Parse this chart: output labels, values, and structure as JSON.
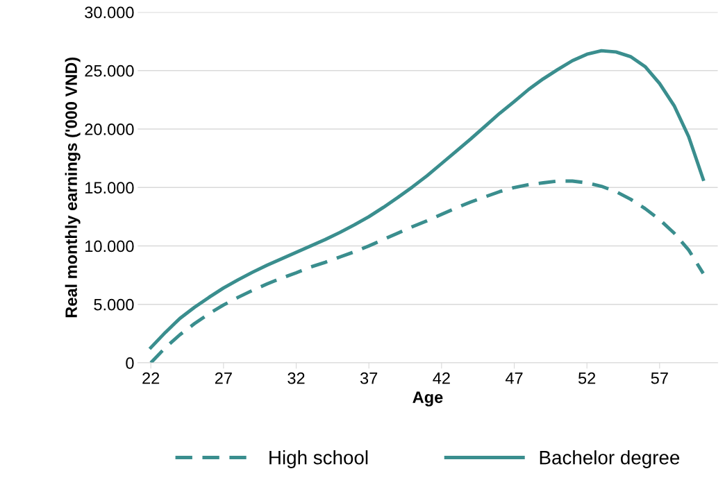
{
  "chart_data": {
    "type": "line",
    "xlabel": "Age",
    "ylabel": "Real monthly earnings ('000 VND)",
    "x": [
      22,
      23,
      24,
      25,
      26,
      27,
      28,
      29,
      30,
      31,
      32,
      33,
      34,
      35,
      36,
      37,
      38,
      39,
      40,
      41,
      42,
      43,
      44,
      45,
      46,
      47,
      48,
      49,
      50,
      51,
      52,
      53,
      54,
      55,
      56,
      57,
      58,
      59,
      60
    ],
    "series": [
      {
        "name": "High school",
        "color": "#3a8e8e",
        "line_style": "dashed",
        "values": [
          0,
          1300,
          2400,
          3350,
          4200,
          4950,
          5600,
          6200,
          6750,
          7250,
          7700,
          8200,
          8600,
          9050,
          9500,
          10000,
          10550,
          11100,
          11650,
          12150,
          12700,
          13250,
          13750,
          14200,
          14650,
          15000,
          15250,
          15400,
          15550,
          15550,
          15400,
          15100,
          14650,
          14000,
          13200,
          12250,
          11100,
          9650,
          7650
        ]
      },
      {
        "name": "Bachelor degree",
        "color": "#3a8e8e",
        "line_style": "solid",
        "values": [
          1300,
          2600,
          3800,
          4750,
          5600,
          6400,
          7100,
          7750,
          8350,
          8900,
          9450,
          10000,
          10550,
          11150,
          11800,
          12500,
          13300,
          14150,
          15050,
          16000,
          17050,
          18100,
          19150,
          20250,
          21350,
          22350,
          23400,
          24300,
          25100,
          25850,
          26400,
          26700,
          26600,
          26200,
          25350,
          23900,
          22000,
          19350,
          15700
        ]
      }
    ],
    "xlim": [
      21.1,
      61
    ],
    "xticks": [
      22,
      27,
      32,
      37,
      42,
      47,
      52,
      57
    ],
    "ylim": [
      0,
      30000
    ],
    "yticks": [
      0,
      {
        "value": 5000,
        "label": "5.000"
      },
      {
        "value": 10000,
        "label": "10.000"
      },
      {
        "value": 15000,
        "label": "15.000"
      },
      {
        "value": 20000,
        "label": "20.000"
      },
      {
        "value": 25000,
        "label": "25.000"
      },
      {
        "value": 30000,
        "label": "30.000"
      }
    ],
    "grid": "y",
    "legend": "bottom",
    "marker": "none"
  }
}
